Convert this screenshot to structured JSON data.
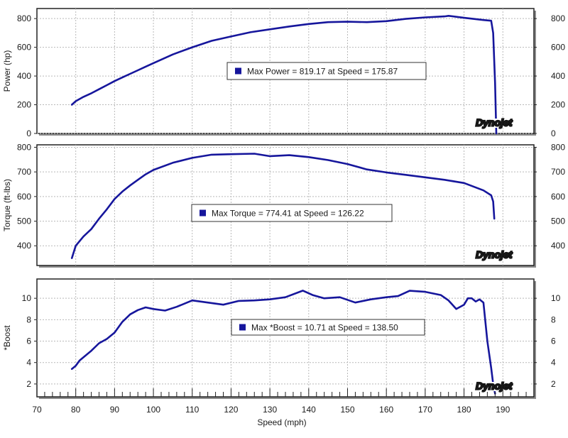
{
  "colors": {
    "series": "#16169c",
    "panel_border": "#222222",
    "panel_shadow": "#8c8c8c",
    "grid": "#b9b9b9",
    "logo": "#c0141c"
  },
  "logo": {
    "text": "Dynojet"
  },
  "chart_data": [
    {
      "type": "line",
      "ylabel": "Power (hp)",
      "xlim": [
        70,
        198
      ],
      "ylim": [
        0,
        870
      ],
      "yticks": [
        0,
        200,
        400,
        600,
        800
      ],
      "grid": true,
      "legend": {
        "text": "Max Power = 819.17 at Speed = 175.87",
        "placement": "center"
      },
      "series": [
        {
          "x": [
            79,
            80,
            82,
            84,
            86,
            88,
            90,
            92,
            94,
            96,
            98,
            100,
            105,
            110,
            115,
            120,
            125,
            130,
            135,
            140,
            145,
            150,
            155,
            160,
            165,
            170,
            175,
            176,
            180,
            185,
            187,
            187.5,
            188,
            188.3
          ],
          "y": [
            200,
            225,
            255,
            280,
            308,
            336,
            365,
            390,
            415,
            440,
            465,
            490,
            550,
            600,
            645,
            675,
            705,
            725,
            745,
            762,
            775,
            778,
            775,
            782,
            798,
            808,
            815,
            819,
            805,
            790,
            785,
            700,
            350,
            0
          ]
        }
      ]
    },
    {
      "type": "line",
      "ylabel": "Torque (ft-lbs)",
      "xlim": [
        70,
        198
      ],
      "ylim": [
        320,
        810
      ],
      "yticks": [
        400,
        500,
        600,
        700,
        800
      ],
      "grid": true,
      "legend": {
        "text": "Max Torque = 774.41 at Speed = 126.22",
        "placement": "center"
      },
      "series": [
        {
          "x": [
            79,
            80,
            82,
            84,
            86,
            88,
            90,
            92,
            94,
            96,
            98,
            100,
            105,
            110,
            115,
            120,
            126,
            130,
            135,
            140,
            145,
            150,
            155,
            160,
            165,
            170,
            175,
            180,
            185,
            187,
            187.5,
            187.8
          ],
          "y": [
            350,
            400,
            438,
            468,
            510,
            548,
            590,
            620,
            645,
            668,
            690,
            708,
            737,
            757,
            770,
            772,
            774,
            764,
            768,
            760,
            748,
            732,
            710,
            698,
            688,
            678,
            668,
            655,
            625,
            605,
            580,
            510
          ]
        }
      ]
    },
    {
      "type": "line",
      "ylabel": "*Boost",
      "xlabel": "Speed (mph)",
      "xlim": [
        70,
        198
      ],
      "ylim": [
        0.8,
        11.8
      ],
      "xticks": [
        70,
        80,
        90,
        100,
        110,
        120,
        130,
        140,
        150,
        160,
        170,
        180,
        190
      ],
      "yticks": [
        2,
        4,
        6,
        8,
        10
      ],
      "grid": true,
      "legend": {
        "text": "Max *Boost = 10.71 at Speed = 138.50",
        "placement": "center"
      },
      "series": [
        {
          "x": [
            79,
            80,
            81,
            82,
            84,
            86,
            88,
            90,
            92,
            94,
            96,
            98,
            100,
            103,
            106,
            110,
            114,
            118,
            122,
            126,
            130,
            134,
            138.5,
            141,
            144,
            148,
            152,
            156,
            160,
            163,
            166,
            170,
            174,
            176,
            178,
            180,
            181,
            182,
            183,
            184,
            185,
            186,
            187,
            187.5,
            188
          ],
          "y": [
            3.4,
            3.7,
            4.2,
            4.5,
            5.1,
            5.8,
            6.2,
            6.8,
            7.8,
            8.5,
            8.9,
            9.15,
            9.0,
            8.85,
            9.2,
            9.8,
            9.6,
            9.4,
            9.75,
            9.8,
            9.9,
            10.1,
            10.71,
            10.3,
            10.0,
            10.1,
            9.6,
            9.9,
            10.1,
            10.2,
            10.7,
            10.6,
            10.3,
            9.8,
            9.0,
            9.4,
            10.0,
            10.0,
            9.7,
            9.9,
            9.6,
            6.0,
            3.5,
            2.0,
            1.1
          ]
        }
      ]
    }
  ]
}
